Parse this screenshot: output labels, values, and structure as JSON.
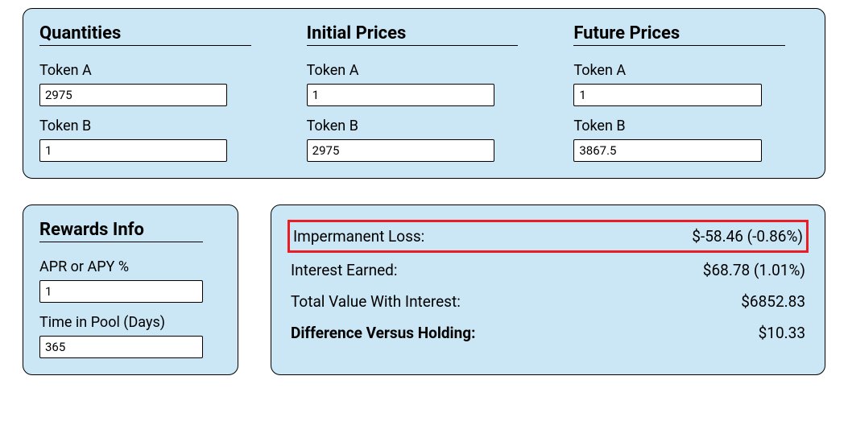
{
  "colors": {
    "panel_bg": "#cbe7f5",
    "border": "#000000",
    "highlight_border": "#ec1c24",
    "page_bg": "#ffffff"
  },
  "quantities": {
    "title": "Quantities",
    "token_a_label": "Token A",
    "token_a_value": "2975",
    "token_b_label": "Token B",
    "token_b_value": "1"
  },
  "initial_prices": {
    "title": "Initial Prices",
    "token_a_label": "Token A",
    "token_a_value": "1",
    "token_b_label": "Token B",
    "token_b_value": "2975"
  },
  "future_prices": {
    "title": "Future Prices",
    "token_a_label": "Token A",
    "token_a_value": "1",
    "token_b_label": "Token B",
    "token_b_value": "3867.5"
  },
  "rewards": {
    "title": "Rewards Info",
    "apr_label": "APR or APY %",
    "apr_value": "1",
    "time_label": "Time in Pool (Days)",
    "time_value": "365"
  },
  "results": {
    "impermanent_loss_label": "Impermanent Loss:",
    "impermanent_loss_value": "$-58.46 (-0.86%)",
    "interest_earned_label": "Interest Earned:",
    "interest_earned_value": "$68.78 (1.01%)",
    "total_value_label": "Total Value With Interest:",
    "total_value_value": "$6852.83",
    "diff_holding_label": "Difference Versus Holding:",
    "diff_holding_value": "$10.33"
  }
}
